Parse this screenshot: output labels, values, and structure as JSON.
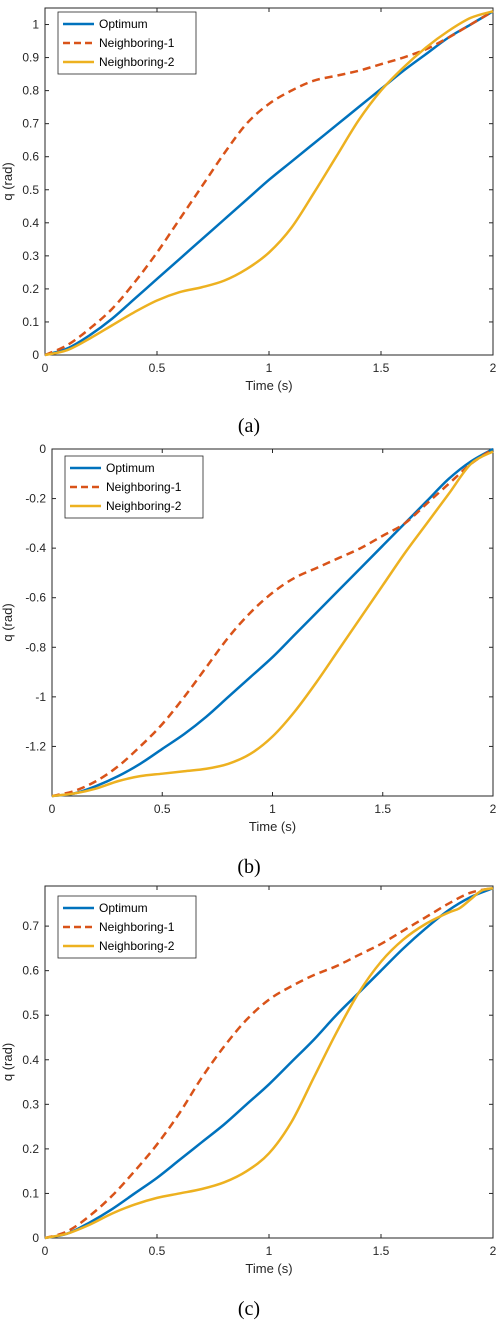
{
  "chart_data": [
    {
      "type": "line",
      "caption": "(a)",
      "xlabel": "Time (s)",
      "ylabel": "q (rad)",
      "xlim": [
        0,
        2
      ],
      "ylim": [
        0,
        1.05
      ],
      "xticks": [
        0,
        0.5,
        1,
        1.5,
        2
      ],
      "xtick_labels": [
        "0",
        "0.5",
        "1",
        "1.5",
        "2"
      ],
      "yticks": [
        0,
        0.1,
        0.2,
        0.3,
        0.4,
        0.5,
        0.6,
        0.7,
        0.8,
        0.9,
        1
      ],
      "ytick_labels": [
        "0",
        "0.1",
        "0.2",
        "0.3",
        "0.4",
        "0.5",
        "0.6",
        "0.7",
        "0.8",
        "0.9",
        "1"
      ],
      "grid": false,
      "legend_position": "top-left",
      "series": [
        {
          "name": "Optimum",
          "color": "#0072BD",
          "dash": "solid",
          "x": [
            0,
            0.1,
            0.2,
            0.3,
            0.4,
            0.5,
            0.6,
            0.7,
            0.8,
            0.9,
            1.0,
            1.1,
            1.2,
            1.3,
            1.4,
            1.5,
            1.6,
            1.7,
            1.8,
            1.9,
            2.0
          ],
          "y": [
            0.0,
            0.02,
            0.06,
            0.11,
            0.17,
            0.23,
            0.29,
            0.35,
            0.41,
            0.47,
            0.53,
            0.585,
            0.64,
            0.695,
            0.75,
            0.805,
            0.86,
            0.91,
            0.96,
            1.0,
            1.04
          ]
        },
        {
          "name": "Neighboring-1",
          "color": "#D95319",
          "dash": "dashed",
          "x": [
            0,
            0.1,
            0.2,
            0.3,
            0.4,
            0.5,
            0.6,
            0.7,
            0.8,
            0.9,
            1.0,
            1.1,
            1.2,
            1.3,
            1.4,
            1.5,
            1.6,
            1.7,
            1.8,
            1.9,
            2.0
          ],
          "y": [
            0.0,
            0.03,
            0.08,
            0.14,
            0.22,
            0.31,
            0.41,
            0.51,
            0.61,
            0.7,
            0.76,
            0.8,
            0.83,
            0.845,
            0.86,
            0.88,
            0.9,
            0.925,
            0.96,
            1.0,
            1.04
          ]
        },
        {
          "name": "Neighboring-2",
          "color": "#EDB120",
          "dash": "solid",
          "x": [
            0,
            0.1,
            0.2,
            0.3,
            0.4,
            0.5,
            0.6,
            0.7,
            0.8,
            0.9,
            1.0,
            1.1,
            1.2,
            1.3,
            1.4,
            1.5,
            1.6,
            1.7,
            1.8,
            1.9,
            2.0
          ],
          "y": [
            0.0,
            0.015,
            0.05,
            0.09,
            0.13,
            0.165,
            0.19,
            0.205,
            0.225,
            0.26,
            0.31,
            0.385,
            0.49,
            0.6,
            0.71,
            0.8,
            0.87,
            0.93,
            0.98,
            1.02,
            1.04
          ]
        }
      ]
    },
    {
      "type": "line",
      "caption": "(b)",
      "xlabel": "Time (s)",
      "ylabel": "q (rad)",
      "xlim": [
        0,
        2
      ],
      "ylim": [
        -1.4,
        0
      ],
      "xticks": [
        0,
        0.5,
        1,
        1.5,
        2
      ],
      "xtick_labels": [
        "0",
        "0.5",
        "1",
        "1.5",
        "2"
      ],
      "yticks": [
        -1.2,
        -1,
        -0.8,
        -0.6,
        -0.4,
        -0.2,
        0
      ],
      "ytick_labels": [
        "-1.2",
        "-1",
        "-0.8",
        "-0.6",
        "-0.4",
        "-0.2",
        "0"
      ],
      "grid": false,
      "legend_position": "top-left",
      "series": [
        {
          "name": "Optimum",
          "color": "#0072BD",
          "dash": "solid",
          "x": [
            0,
            0.1,
            0.2,
            0.3,
            0.4,
            0.5,
            0.6,
            0.7,
            0.8,
            0.9,
            1.0,
            1.1,
            1.2,
            1.3,
            1.4,
            1.5,
            1.6,
            1.7,
            1.8,
            1.9,
            2.0
          ],
          "y": [
            -1.4,
            -1.39,
            -1.36,
            -1.32,
            -1.27,
            -1.21,
            -1.15,
            -1.08,
            -1.0,
            -0.92,
            -0.84,
            -0.75,
            -0.66,
            -0.57,
            -0.48,
            -0.39,
            -0.3,
            -0.21,
            -0.12,
            -0.05,
            0.0
          ]
        },
        {
          "name": "Neighboring-1",
          "color": "#D95319",
          "dash": "dashed",
          "x": [
            0,
            0.1,
            0.2,
            0.3,
            0.4,
            0.5,
            0.6,
            0.7,
            0.8,
            0.9,
            1.0,
            1.1,
            1.2,
            1.3,
            1.4,
            1.5,
            1.6,
            1.7,
            1.8,
            1.9,
            2.0
          ],
          "y": [
            -1.4,
            -1.38,
            -1.34,
            -1.28,
            -1.2,
            -1.11,
            -1.0,
            -0.88,
            -0.76,
            -0.66,
            -0.58,
            -0.52,
            -0.48,
            -0.44,
            -0.4,
            -0.35,
            -0.3,
            -0.22,
            -0.14,
            -0.06,
            0.0
          ]
        },
        {
          "name": "Neighboring-2",
          "color": "#EDB120",
          "dash": "solid",
          "x": [
            0,
            0.1,
            0.2,
            0.3,
            0.4,
            0.5,
            0.6,
            0.7,
            0.8,
            0.9,
            1.0,
            1.1,
            1.2,
            1.3,
            1.4,
            1.5,
            1.6,
            1.7,
            1.8,
            1.9,
            2.0
          ],
          "y": [
            -1.4,
            -1.39,
            -1.37,
            -1.34,
            -1.32,
            -1.31,
            -1.3,
            -1.29,
            -1.27,
            -1.23,
            -1.16,
            -1.06,
            -0.94,
            -0.81,
            -0.68,
            -0.55,
            -0.42,
            -0.3,
            -0.18,
            -0.06,
            -0.01
          ]
        }
      ]
    },
    {
      "type": "line",
      "caption": "(c)",
      "xlabel": "Time (s)",
      "ylabel": "q (rad)",
      "xlim": [
        0,
        2
      ],
      "ylim": [
        0,
        0.79
      ],
      "xticks": [
        0,
        0.5,
        1,
        1.5,
        2
      ],
      "xtick_labels": [
        "0",
        "0.5",
        "1",
        "1.5",
        "2"
      ],
      "yticks": [
        0,
        0.1,
        0.2,
        0.3,
        0.4,
        0.5,
        0.6,
        0.7
      ],
      "ytick_labels": [
        "0",
        "0.1",
        "0.2",
        "0.3",
        "0.4",
        "0.5",
        "0.6",
        "0.7"
      ],
      "grid": false,
      "legend_position": "top-left",
      "series": [
        {
          "name": "Optimum",
          "color": "#0072BD",
          "dash": "solid",
          "x": [
            0,
            0.1,
            0.2,
            0.3,
            0.4,
            0.5,
            0.6,
            0.7,
            0.8,
            0.9,
            1.0,
            1.1,
            1.2,
            1.3,
            1.4,
            1.5,
            1.6,
            1.7,
            1.8,
            1.9,
            2.0
          ],
          "y": [
            0.0,
            0.01,
            0.035,
            0.065,
            0.1,
            0.135,
            0.175,
            0.215,
            0.255,
            0.3,
            0.345,
            0.395,
            0.445,
            0.5,
            0.55,
            0.6,
            0.65,
            0.695,
            0.735,
            0.765,
            0.785
          ]
        },
        {
          "name": "Neighboring-1",
          "color": "#D95319",
          "dash": "dashed",
          "x": [
            0,
            0.1,
            0.2,
            0.3,
            0.4,
            0.5,
            0.6,
            0.7,
            0.8,
            0.9,
            1.0,
            1.1,
            1.2,
            1.3,
            1.4,
            1.5,
            1.6,
            1.7,
            1.8,
            1.9,
            2.0
          ],
          "y": [
            0.0,
            0.015,
            0.05,
            0.095,
            0.15,
            0.21,
            0.28,
            0.36,
            0.43,
            0.49,
            0.535,
            0.565,
            0.59,
            0.61,
            0.635,
            0.66,
            0.69,
            0.72,
            0.75,
            0.775,
            0.785
          ]
        },
        {
          "name": "Neighboring-2",
          "color": "#EDB120",
          "dash": "solid",
          "x": [
            0,
            0.1,
            0.2,
            0.3,
            0.4,
            0.5,
            0.6,
            0.7,
            0.8,
            0.9,
            1.0,
            1.1,
            1.2,
            1.3,
            1.4,
            1.5,
            1.6,
            1.7,
            1.8,
            1.85,
            1.9,
            1.95,
            2.0
          ],
          "y": [
            0.0,
            0.01,
            0.03,
            0.055,
            0.075,
            0.09,
            0.1,
            0.11,
            0.125,
            0.15,
            0.19,
            0.26,
            0.36,
            0.46,
            0.55,
            0.62,
            0.67,
            0.705,
            0.73,
            0.74,
            0.76,
            0.78,
            0.785
          ]
        }
      ]
    }
  ]
}
